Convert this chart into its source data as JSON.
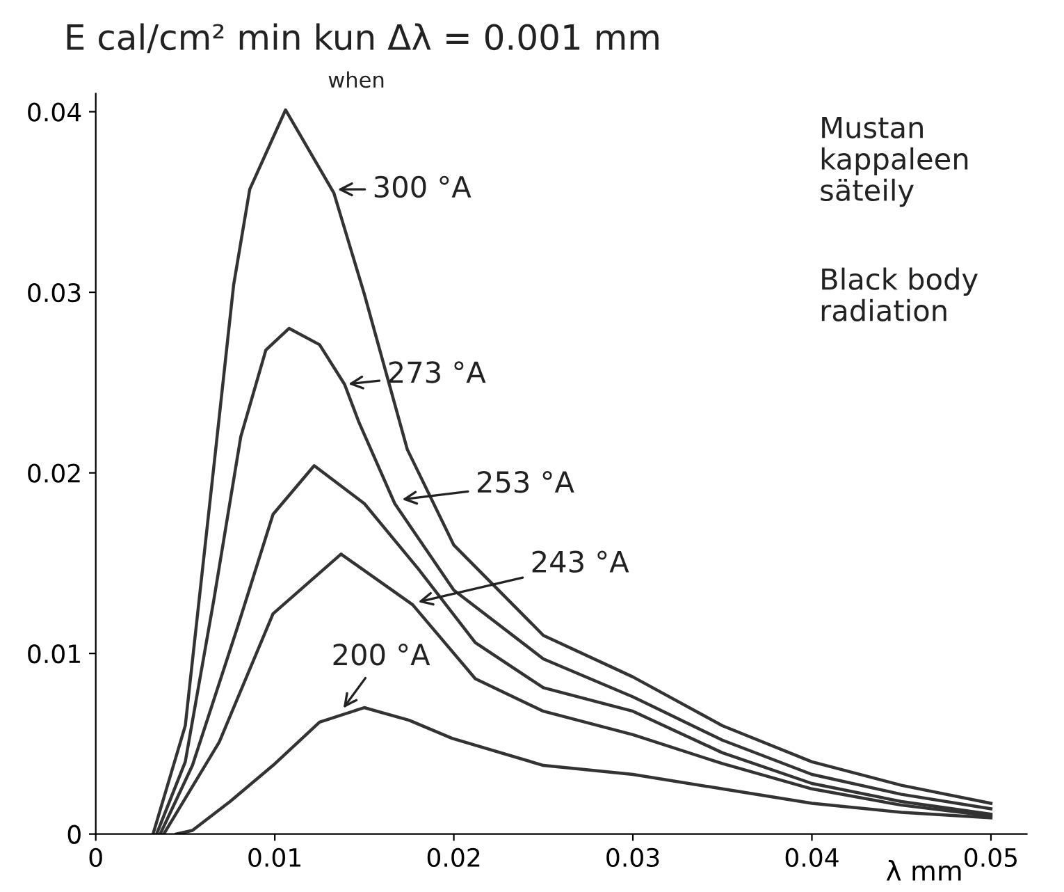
{
  "chart_data": {
    "type": "line",
    "title": "E cal/cm² min kun Δλ = 0.001 mm",
    "xlabel": "λ mm",
    "xlim": [
      0,
      0.052
    ],
    "ylim": [
      0,
      0.041
    ],
    "xticks": [
      0,
      0.01,
      0.02,
      0.03,
      0.04,
      0.05
    ],
    "yticks": [
      0,
      0.01,
      0.02,
      0.03,
      0.04
    ],
    "grid": false,
    "legend": false,
    "marker": "none",
    "line_style": "solid",
    "series": [
      {
        "color": "#333333",
        "x": [
          0.0032,
          0.005,
          0.0067,
          0.0077,
          0.0086,
          0.0106,
          0.0133,
          0.015,
          0.0174,
          0.02,
          0.025,
          0.03,
          0.035,
          0.04,
          0.045,
          0.05
        ],
        "values": [
          0,
          0.006,
          0.0213,
          0.0304,
          0.0357,
          0.0401,
          0.0355,
          0.0299,
          0.0213,
          0.016,
          0.011,
          0.0087,
          0.006,
          0.004,
          0.0027,
          0.0017
        ]
      },
      {
        "color": "#333333",
        "x": [
          0.0034,
          0.005,
          0.0066,
          0.0081,
          0.0095,
          0.0108,
          0.0125,
          0.0139,
          0.0147,
          0.0167,
          0.02,
          0.025,
          0.03,
          0.035,
          0.04,
          0.045,
          0.05
        ],
        "values": [
          0,
          0.004,
          0.013,
          0.022,
          0.0268,
          0.028,
          0.0271,
          0.0249,
          0.0228,
          0.0183,
          0.0135,
          0.0097,
          0.0076,
          0.0052,
          0.0033,
          0.0022,
          0.0014
        ]
      },
      {
        "color": "#333333",
        "x": [
          0.0036,
          0.0054,
          0.0079,
          0.0099,
          0.0122,
          0.015,
          0.018,
          0.0212,
          0.025,
          0.03,
          0.035,
          0.04,
          0.045,
          0.05
        ],
        "values": [
          0,
          0.0038,
          0.0114,
          0.0177,
          0.0204,
          0.0183,
          0.0147,
          0.0106,
          0.0081,
          0.0068,
          0.0045,
          0.0028,
          0.0018,
          0.0011
        ]
      },
      {
        "color": "#333333",
        "x": [
          0.0038,
          0.0069,
          0.0099,
          0.0137,
          0.0177,
          0.0212,
          0.025,
          0.03,
          0.035,
          0.04,
          0.045,
          0.05
        ],
        "values": [
          0,
          0.0051,
          0.0122,
          0.0155,
          0.0127,
          0.0086,
          0.0068,
          0.0055,
          0.0039,
          0.0025,
          0.0016,
          0.001
        ]
      },
      {
        "color": "#333333",
        "x": [
          0.0045,
          0.0054,
          0.0075,
          0.0099,
          0.0125,
          0.015,
          0.0175,
          0.0199,
          0.025,
          0.03,
          0.035,
          0.04,
          0.045,
          0.05
        ],
        "values": [
          0,
          0.0002,
          0.0018,
          0.0038,
          0.0062,
          0.007,
          0.0063,
          0.0053,
          0.0038,
          0.0033,
          0.0025,
          0.0017,
          0.0012,
          0.0009
        ]
      }
    ],
    "annotations": [
      {
        "text": "300 °A",
        "x": 0.0133,
        "y": 0.0357
      },
      {
        "text": "273 °A",
        "x": 0.0139,
        "y": 0.0249
      },
      {
        "text": "253 °A",
        "x": 0.0169,
        "y": 0.0185
      },
      {
        "text": "243 °A",
        "x": 0.0178,
        "y": 0.0128
      },
      {
        "text": "200 °A",
        "x": 0.0137,
        "y": 0.0068
      },
      "when",
      "Mustan\nkappaleen\nsäteily",
      "Black body\nradiation"
    ]
  }
}
